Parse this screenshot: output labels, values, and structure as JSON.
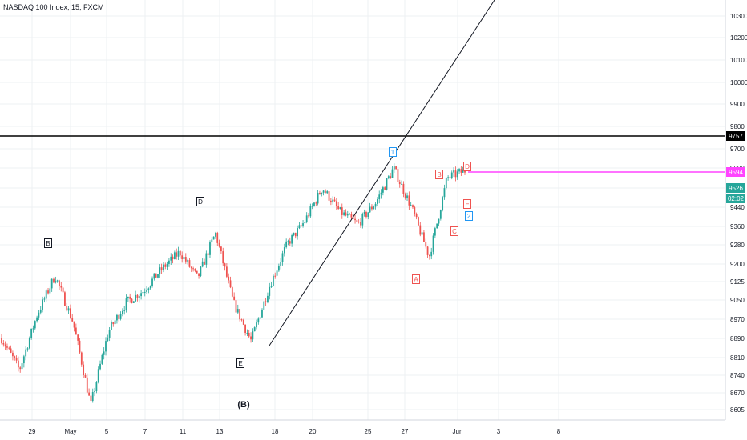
{
  "chart_data": {
    "type": "candlestick",
    "title": "NASDAQ 100 Index, 15, FXCM",
    "y_ticks": [
      "8605",
      "8670",
      "8740",
      "8810",
      "8890",
      "8970",
      "9050",
      "9125",
      "9200",
      "9280",
      "9360",
      "9440",
      "9520",
      "9600",
      "9700",
      "9800",
      "9900",
      "10000",
      "10100",
      "10200",
      "10300"
    ],
    "x_ticks": [
      "29",
      "May",
      "5",
      "7",
      "11",
      "13",
      "18",
      "20",
      "25",
      "27",
      "Jun",
      "3",
      "8"
    ],
    "price_tags": {
      "resistance": {
        "value": "9757",
        "color": "#000000"
      },
      "target": {
        "value": "9594",
        "color": "#ff44ff"
      },
      "last_price": {
        "value": "9526",
        "color": "#26a69a"
      },
      "countdown": {
        "value": "02:02",
        "color": "#26a69a"
      }
    },
    "wave_labels": [
      {
        "text": "B",
        "style": "black"
      },
      {
        "text": "D",
        "style": "black"
      },
      {
        "text": "E",
        "style": "black"
      },
      {
        "text": "(B)",
        "style": "plain"
      },
      {
        "text": "1",
        "style": "blue"
      },
      {
        "text": "2",
        "style": "blue"
      },
      {
        "text": "A",
        "style": "red"
      },
      {
        "text": "B",
        "style": "red"
      },
      {
        "text": "C",
        "style": "red"
      },
      {
        "text": "D",
        "style": "red"
      },
      {
        "text": "E",
        "style": "red"
      }
    ],
    "colors": {
      "up": "#26a69a",
      "down": "#ef5350",
      "grid": "#eef0f3",
      "axis": "#131722"
    },
    "price_path": [
      [
        "Apr 27",
        8890
      ],
      [
        "Apr 28",
        8760
      ],
      [
        "Apr 29",
        8990
      ],
      [
        "Apr 30",
        9150
      ],
      [
        "May 1",
        8960
      ],
      [
        "May 4",
        8620
      ],
      [
        "May 5",
        8920
      ],
      [
        "May 6",
        9040
      ],
      [
        "May 7",
        9090
      ],
      [
        "May 8",
        9180
      ],
      [
        "May 11",
        9250
      ],
      [
        "May 12",
        9140
      ],
      [
        "May 13",
        9330
      ],
      [
        "May 14",
        9040
      ],
      [
        "May 15",
        8880
      ],
      [
        "May 18",
        9100
      ],
      [
        "May 19",
        9280
      ],
      [
        "May 20",
        9380
      ],
      [
        "May 21",
        9520
      ],
      [
        "May 22",
        9420
      ],
      [
        "May 25",
        9370
      ],
      [
        "May 26",
        9460
      ],
      [
        "May 27",
        9600
      ],
      [
        "May 28",
        9440
      ],
      [
        "May 29",
        9230
      ],
      [
        "Jun 1",
        9560
      ],
      [
        "Jun 2",
        9590
      ]
    ]
  }
}
